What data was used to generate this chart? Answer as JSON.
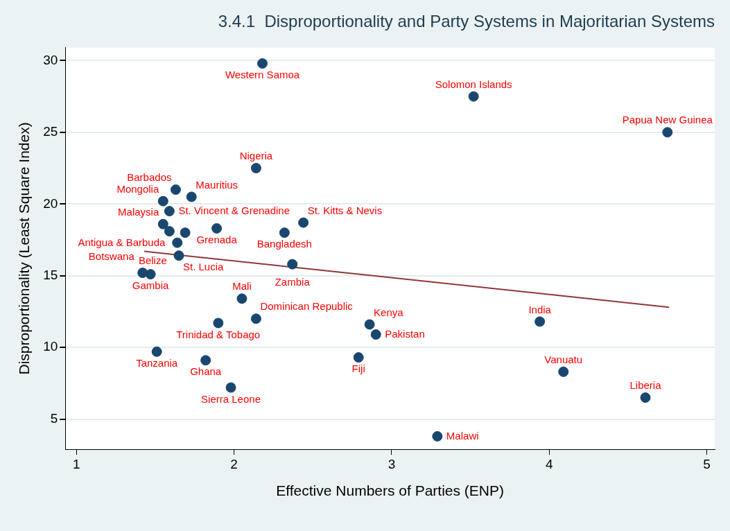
{
  "chart_data": {
    "type": "scatter",
    "title": "3.4.1  Disproportionality and Party Systems in Majoritarian Systems",
    "xlabel": "Effective Numbers of Parties (ENP)",
    "ylabel": "Disproportionality (Least Square Index)",
    "xlim": [
      0.93,
      5.05
    ],
    "xticks": [
      1,
      2,
      3,
      4,
      5
    ],
    "ylim": [
      2.9,
      30.9
    ],
    "yticks": [
      5,
      10,
      15,
      20,
      25,
      30
    ],
    "grid": "y",
    "legend": false,
    "series": [
      {
        "color": "#1a476f",
        "marker": "circle",
        "x": [
          2.18,
          3.52,
          4.75,
          2.14,
          1.63,
          1.73,
          1.55,
          1.59,
          1.55,
          1.59,
          1.69,
          1.89,
          2.32,
          2.44,
          1.64,
          1.65,
          1.42,
          1.47,
          2.37,
          2.05,
          1.9,
          2.14,
          2.86,
          2.9,
          2.79,
          1.51,
          1.82,
          1.98,
          3.29,
          3.94,
          4.09,
          4.61
        ],
        "values": [
          29.8,
          27.5,
          25.0,
          22.5,
          21.0,
          20.5,
          20.2,
          19.5,
          18.6,
          18.1,
          18.0,
          18.3,
          18.0,
          18.7,
          17.3,
          16.4,
          15.2,
          15.1,
          15.8,
          13.4,
          11.7,
          12.0,
          11.6,
          10.9,
          9.3,
          9.7,
          9.1,
          7.2,
          3.8,
          11.8,
          8.3,
          6.5
        ],
        "value_labels": [
          "Western Samoa",
          "Solomon Islands",
          "Papua New Guinea",
          "Nigeria",
          "Barbados",
          "Mauritius",
          "Mongolia",
          "St. Vincent & Grenadine",
          "Malaysia",
          "Antigua & Barbuda",
          null,
          "Grenada",
          "Bangladesh",
          "St. Kitts & Nevis",
          "Belize",
          "St. Lucia",
          "Botswana",
          "Gambia",
          "Zambia",
          "Mali",
          "Trinidad & Tobago",
          "Dominican Republic",
          "Kenya",
          "Pakistan",
          "Fiji",
          "Tanzania",
          "Ghana",
          "Sierra Leone",
          "Malawi",
          "India",
          "Vanuatu",
          "Liberia"
        ]
      },
      {
        "type": "line",
        "color": "#90353b",
        "x": [
          1.43,
          4.76
        ],
        "values": [
          16.7,
          12.8
        ]
      }
    ]
  }
}
